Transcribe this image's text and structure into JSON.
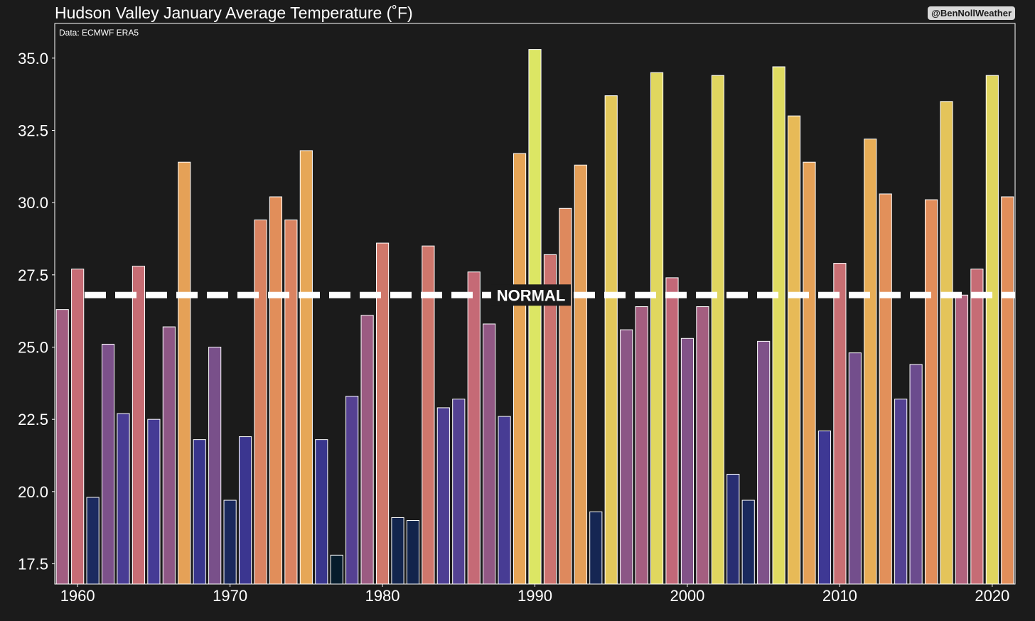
{
  "chart_data": {
    "type": "bar",
    "title": "Hudson Valley January Average Temperature (˚F)",
    "source": "Data: ECMWF ERA5",
    "credit": "@BenNollWeather",
    "xlabel": "",
    "ylabel": "",
    "ylim": [
      16.8,
      36.2
    ],
    "xlim": [
      1958.5,
      2021.5
    ],
    "yticks": [
      17.5,
      20.0,
      22.5,
      25.0,
      27.5,
      30.0,
      32.5,
      35.0
    ],
    "ytick_labels": [
      "17.5",
      "20.0",
      "22.5",
      "25.0",
      "27.5",
      "30.0",
      "32.5",
      "35.0"
    ],
    "xticks": [
      1960,
      1970,
      1980,
      1990,
      2000,
      2010,
      2020
    ],
    "xtick_labels": [
      "1960",
      "1970",
      "1980",
      "1990",
      "2000",
      "2010",
      "2020"
    ],
    "normal": 26.8,
    "normal_label": "NORMAL",
    "colormap_range": [
      17.8,
      35.3
    ],
    "years": [
      1959,
      1960,
      1961,
      1962,
      1963,
      1964,
      1965,
      1966,
      1967,
      1968,
      1969,
      1970,
      1971,
      1972,
      1973,
      1974,
      1975,
      1976,
      1977,
      1978,
      1979,
      1980,
      1981,
      1982,
      1983,
      1984,
      1985,
      1986,
      1987,
      1988,
      1989,
      1990,
      1991,
      1992,
      1993,
      1994,
      1995,
      1996,
      1997,
      1998,
      1999,
      2000,
      2001,
      2002,
      2003,
      2004,
      2005,
      2006,
      2007,
      2008,
      2009,
      2010,
      2011,
      2012,
      2013,
      2014,
      2015,
      2016,
      2017,
      2018,
      2019,
      2020,
      2021
    ],
    "values": [
      26.3,
      27.7,
      19.8,
      25.1,
      22.7,
      27.8,
      22.5,
      25.7,
      31.4,
      21.8,
      25.0,
      19.7,
      21.9,
      29.4,
      30.2,
      29.4,
      31.8,
      21.8,
      17.8,
      23.3,
      26.1,
      28.6,
      19.1,
      19.0,
      28.5,
      22.9,
      23.2,
      27.6,
      25.8,
      22.6,
      31.7,
      35.3,
      28.2,
      29.8,
      31.3,
      19.3,
      33.7,
      25.6,
      26.4,
      34.5,
      27.4,
      25.3,
      26.4,
      34.4,
      20.6,
      19.7,
      25.2,
      34.7,
      33.0,
      31.4,
      22.1,
      27.9,
      24.8,
      32.2,
      30.3,
      23.2,
      24.4,
      30.1,
      33.5,
      26.8,
      27.7,
      34.4,
      30.2
    ]
  }
}
